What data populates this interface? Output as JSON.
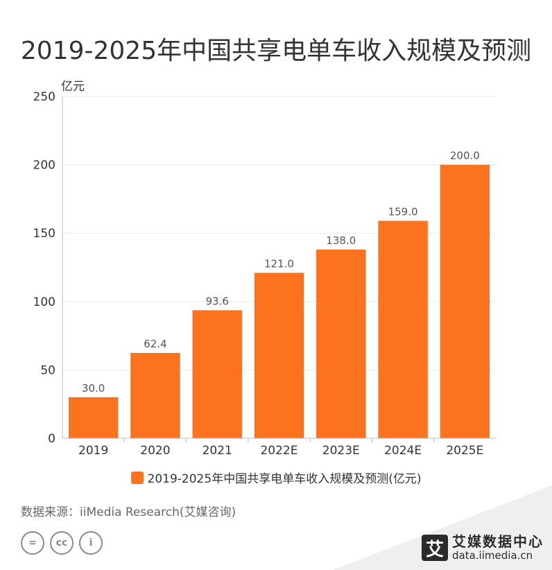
{
  "title": "2019-2025年中国共享电单车收入规模及预测",
  "unit": "亿元",
  "source": "数据来源：iiMedia Research(艾媒咨询)",
  "brand": {
    "logo_char": "艾",
    "name": "艾媒数据中心",
    "url": "data.iimedia.cn"
  },
  "colors": {
    "bar": "#fc721e",
    "grid": "#e8e8e8",
    "axis": "#bbbbbb"
  },
  "icons": [
    "equals-circle-icon",
    "cc-circle-icon",
    "person-circle-icon"
  ],
  "cc_text": {
    "equals": "=",
    "cc": "cc",
    "person": "i"
  },
  "chart_data": {
    "type": "bar",
    "title": "2019-2025年中国共享电单车收入规模及预测",
    "categories": [
      "2019",
      "2020",
      "2021",
      "2022E",
      "2023E",
      "2024E",
      "2025E"
    ],
    "series": [
      {
        "name": "2019-2025年中国共享电单车收入规模及预测(亿元)",
        "values": [
          30.0,
          62.4,
          93.6,
          121.0,
          138.0,
          159.0,
          200.0
        ],
        "labels": [
          "30.0",
          "62.4",
          "93.6",
          "121.0",
          "138.0",
          "159.0",
          "200.0"
        ]
      }
    ],
    "ylabel": "亿元",
    "ylim": [
      0,
      250
    ],
    "yticks": [
      0,
      50,
      100,
      150,
      200,
      250
    ],
    "grid": true,
    "legend": "bottom"
  }
}
